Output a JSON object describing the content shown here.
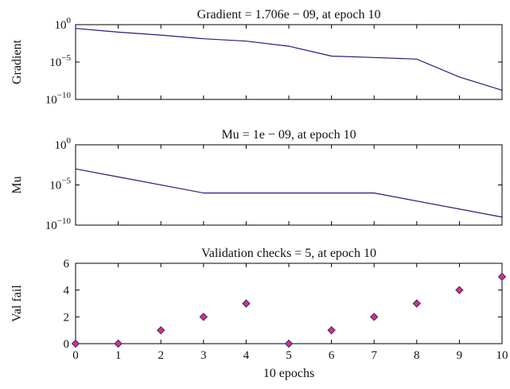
{
  "chart_data": [
    {
      "type": "line",
      "title": "Gradient = 1.706e − 09, at epoch 10",
      "ylabel": "Gradient",
      "xlabel": "",
      "yscale": "log",
      "xlim": [
        0,
        10
      ],
      "ylim": [
        1e-10,
        1
      ],
      "yticks": [
        1e-10,
        1e-05,
        1
      ],
      "ytick_labels": [
        {
          "base": "10",
          "exp": "−10"
        },
        {
          "base": "10",
          "exp": "−5"
        },
        {
          "base": "10",
          "exp": "0"
        }
      ],
      "x": [
        0,
        1,
        2,
        3,
        4,
        5,
        6,
        7,
        8,
        9,
        10
      ],
      "values": [
        0.316,
        0.1,
        0.04,
        0.013,
        0.0063,
        0.0013,
        6.3e-05,
        4e-05,
        2.5e-05,
        1e-07,
        1.706e-09
      ],
      "color": "#1f1f7a",
      "grid": false
    },
    {
      "type": "line",
      "title": "Mu = 1e − 09, at epoch 10",
      "ylabel": "Mu",
      "xlabel": "",
      "yscale": "log",
      "xlim": [
        0,
        10
      ],
      "ylim": [
        1e-10,
        1
      ],
      "yticks": [
        1e-10,
        1e-05,
        1
      ],
      "ytick_labels": [
        {
          "base": "10",
          "exp": "−10"
        },
        {
          "base": "10",
          "exp": "−5"
        },
        {
          "base": "10",
          "exp": "0"
        }
      ],
      "x": [
        0,
        1,
        3,
        7,
        10
      ],
      "values": [
        0.001,
        0.0001,
        1e-06,
        1e-06,
        1e-09
      ],
      "color": "#1f1f7a",
      "grid": false
    },
    {
      "type": "scatter",
      "title": "Validation checks = 5, at epoch 10",
      "ylabel": "Val fail",
      "xlabel": "10 epochs",
      "xlim": [
        0,
        10
      ],
      "ylim": [
        0,
        6
      ],
      "yticks": [
        0,
        2,
        4,
        6
      ],
      "xticks": [
        0,
        1,
        2,
        3,
        4,
        5,
        6,
        7,
        8,
        9,
        10
      ],
      "x": [
        0,
        1,
        2,
        3,
        4,
        5,
        6,
        7,
        8,
        9,
        10
      ],
      "values": [
        0,
        0,
        1,
        2,
        3,
        0,
        1,
        2,
        3,
        4,
        5
      ],
      "marker": "diamond",
      "marker_fill": "#e0306a",
      "marker_edge": "#2a2a8a",
      "grid": false
    }
  ]
}
